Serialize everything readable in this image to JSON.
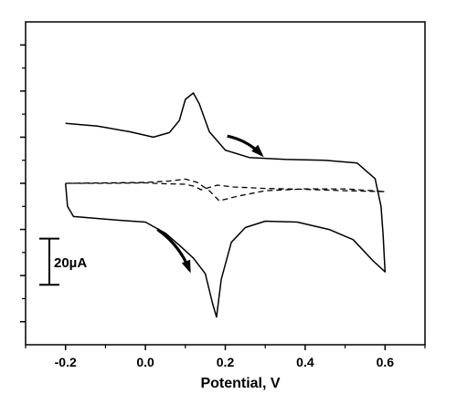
{
  "chart_data": {
    "type": "line",
    "title": "",
    "xlabel": "Potential, V",
    "ylabel": "",
    "xlim": [
      -0.3,
      0.7
    ],
    "ylim": [
      -70,
      70
    ],
    "x_ticks": [
      "-0.2",
      "0.0",
      "0.2",
      "0.4",
      "0.6"
    ],
    "grid": false,
    "scale_bar": {
      "label": "20µA",
      "value": 20,
      "center_y": -34
    },
    "series": [
      {
        "style": "solid",
        "points": [
          [
            -0.2,
            26
          ],
          [
            -0.12,
            24.8
          ],
          [
            -0.04,
            22.4
          ],
          [
            0.02,
            20
          ],
          [
            0.06,
            22
          ],
          [
            0.085,
            27.2
          ],
          [
            0.1,
            36.4
          ],
          [
            0.12,
            39.2
          ],
          [
            0.135,
            34.4
          ],
          [
            0.16,
            22.4
          ],
          [
            0.2,
            14.4
          ],
          [
            0.26,
            11.2
          ],
          [
            0.35,
            10.4
          ],
          [
            0.45,
            10
          ],
          [
            0.53,
            8.8
          ],
          [
            0.575,
            2
          ],
          [
            0.59,
            -10
          ],
          [
            0.595,
            -22
          ],
          [
            0.6,
            -38.4
          ],
          [
            0.57,
            -33.6
          ],
          [
            0.52,
            -24.4
          ],
          [
            0.46,
            -20
          ],
          [
            0.38,
            -16.8
          ],
          [
            0.3,
            -16.4
          ],
          [
            0.25,
            -19.2
          ],
          [
            0.215,
            -25.6
          ],
          [
            0.19,
            -41.6
          ],
          [
            0.178,
            -58
          ],
          [
            0.168,
            -52
          ],
          [
            0.15,
            -39.2
          ],
          [
            0.12,
            -32.4
          ],
          [
            0.09,
            -27.6
          ],
          [
            0.05,
            -21.6
          ],
          [
            0.0,
            -16.8
          ],
          [
            -0.08,
            -15.8
          ],
          [
            -0.18,
            -14.4
          ],
          [
            -0.195,
            -10
          ],
          [
            -0.2,
            0
          ]
        ]
      },
      {
        "style": "dashed",
        "points": [
          [
            -0.2,
            0
          ],
          [
            -0.1,
            0.2
          ],
          [
            0.0,
            0.4
          ],
          [
            0.06,
            1
          ],
          [
            0.1,
            1.8
          ],
          [
            0.13,
            0.4
          ],
          [
            0.16,
            -3.2
          ],
          [
            0.185,
            -7.6
          ],
          [
            0.23,
            -5.6
          ],
          [
            0.3,
            -3.2
          ],
          [
            0.4,
            -2.4
          ],
          [
            0.5,
            -2.4
          ],
          [
            0.6,
            -3.6
          ],
          [
            0.5,
            -3.2
          ],
          [
            0.4,
            -2.6
          ],
          [
            0.3,
            -2.2
          ],
          [
            0.22,
            -1.6
          ],
          [
            0.18,
            -0.8
          ],
          [
            0.14,
            -2.8
          ],
          [
            0.12,
            -1.2
          ],
          [
            0.1,
            -0.4
          ],
          [
            0.05,
            -0.2
          ],
          [
            0.0,
            0.2
          ],
          [
            -0.1,
            0
          ],
          [
            -0.2,
            0
          ]
        ]
      }
    ],
    "annotations": [
      {
        "type": "arrow",
        "from": [
          0.205,
          20.5
        ],
        "to": [
          0.29,
          12.5
        ]
      },
      {
        "type": "arrow",
        "from": [
          0.03,
          -20
        ],
        "to": [
          0.11,
          -37.5
        ]
      }
    ]
  }
}
